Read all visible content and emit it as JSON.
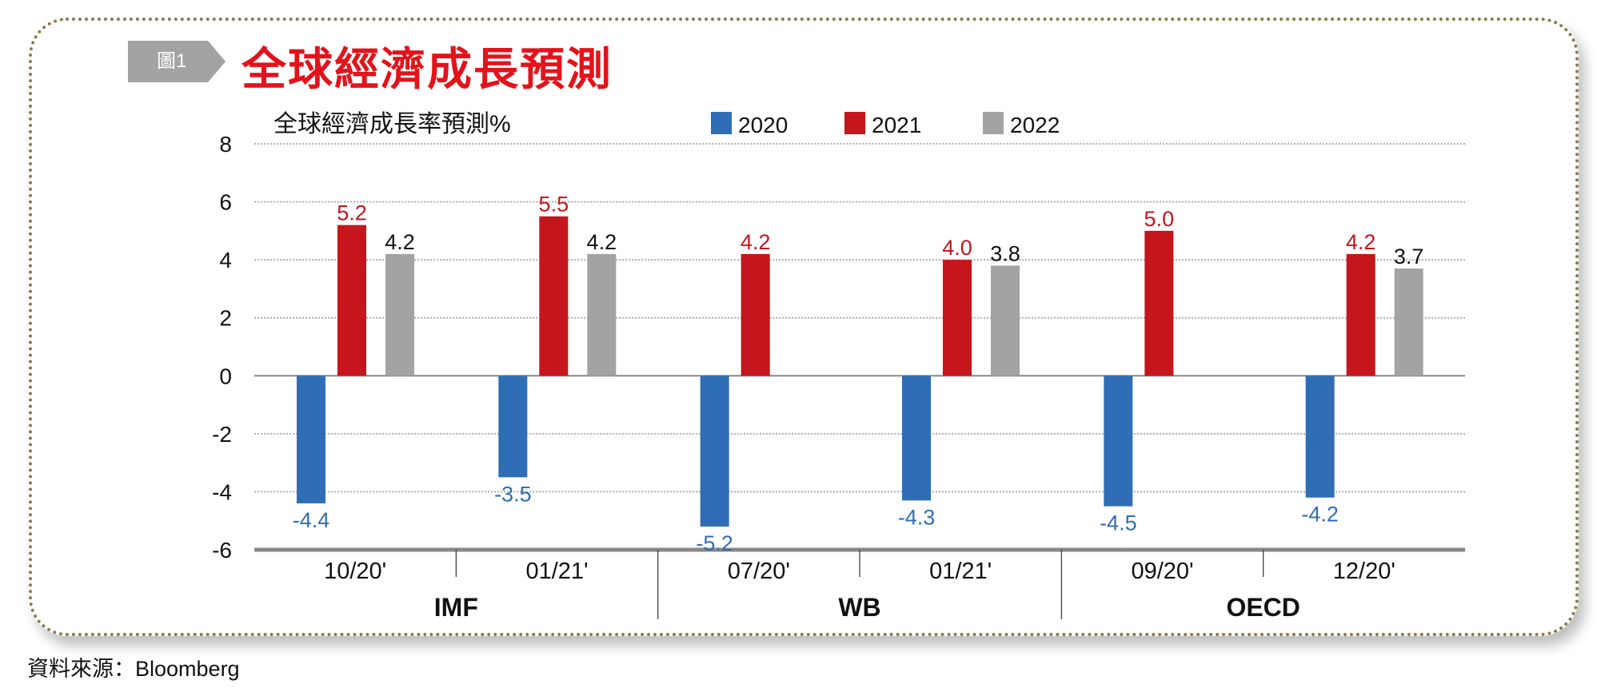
{
  "badge": "圖1",
  "title": "全球經濟成長預測",
  "source": "資料來源：Bloomberg",
  "colors": {
    "2020": "#2f6eb6",
    "2021": "#c4161c",
    "2022": "#a3a3a3",
    "title": "#e3131b"
  },
  "chart_data": {
    "type": "bar",
    "title": "全球經濟成長率預測%",
    "ylabel": "全球經濟成長率預測%",
    "ylim": [
      -6,
      8
    ],
    "yticks": [
      8,
      6,
      4,
      2,
      0,
      -2,
      -4,
      -6
    ],
    "grid": true,
    "legend_position": "top",
    "categories": [
      "10/20'",
      "01/21'",
      "07/20'",
      "01/21'",
      "09/20'",
      "12/20'"
    ],
    "groups": [
      {
        "label": "IMF",
        "span": 2
      },
      {
        "label": "WB",
        "span": 2
      },
      {
        "label": "OECD",
        "span": 2
      }
    ],
    "series": [
      {
        "name": "2020",
        "values": [
          -4.4,
          -3.5,
          -5.2,
          -4.3,
          -4.5,
          -4.2
        ]
      },
      {
        "name": "2021",
        "values": [
          5.2,
          5.5,
          4.2,
          4.0,
          5.0,
          4.2
        ]
      },
      {
        "name": "2022",
        "values": [
          4.2,
          4.2,
          null,
          3.8,
          null,
          3.7
        ]
      }
    ]
  }
}
